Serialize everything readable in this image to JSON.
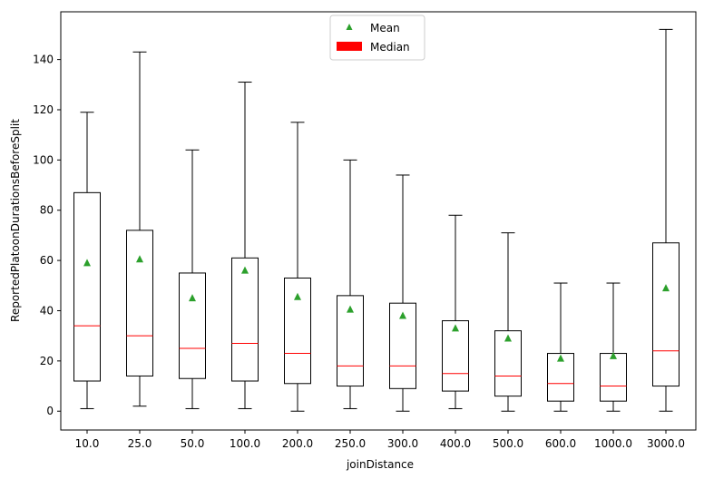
{
  "chart_data": {
    "type": "box",
    "xlabel": "joinDistance",
    "ylabel": "ReportedPlatoonDurationsBeforeSplit",
    "categories": [
      "10.0",
      "25.0",
      "50.0",
      "100.0",
      "200.0",
      "250.0",
      "300.0",
      "400.0",
      "500.0",
      "600.0",
      "1000.0",
      "3000.0"
    ],
    "ylim": [
      -7.5,
      159
    ],
    "yticks": [
      0,
      20,
      40,
      60,
      80,
      100,
      120,
      140
    ],
    "grid": false,
    "legend": {
      "position": "top-center",
      "entries": [
        {
          "label": "Mean",
          "marker": "triangle",
          "color": "#2ca02c"
        },
        {
          "label": "Median",
          "marker": "patch",
          "color": "#ff0000"
        }
      ]
    },
    "series": [
      {
        "category": "10.0",
        "whisker_low": 1,
        "q1": 12,
        "median": 34,
        "q3": 87,
        "whisker_high": 119,
        "mean": 59
      },
      {
        "category": "25.0",
        "whisker_low": 2,
        "q1": 14,
        "median": 30,
        "q3": 72,
        "whisker_high": 143,
        "mean": 60.5
      },
      {
        "category": "50.0",
        "whisker_low": 1,
        "q1": 13,
        "median": 25,
        "q3": 55,
        "whisker_high": 104,
        "mean": 45
      },
      {
        "category": "100.0",
        "whisker_low": 1,
        "q1": 12,
        "median": 27,
        "q3": 61,
        "whisker_high": 131,
        "mean": 56
      },
      {
        "category": "200.0",
        "whisker_low": 0,
        "q1": 11,
        "median": 23,
        "q3": 53,
        "whisker_high": 115,
        "mean": 45.5
      },
      {
        "category": "250.0",
        "whisker_low": 1,
        "q1": 10,
        "median": 18,
        "q3": 46,
        "whisker_high": 100,
        "mean": 40.5
      },
      {
        "category": "300.0",
        "whisker_low": 0,
        "q1": 9,
        "median": 18,
        "q3": 43,
        "whisker_high": 94,
        "mean": 38
      },
      {
        "category": "400.0",
        "whisker_low": 1,
        "q1": 8,
        "median": 15,
        "q3": 36,
        "whisker_high": 78,
        "mean": 33
      },
      {
        "category": "500.0",
        "whisker_low": 0,
        "q1": 6,
        "median": 14,
        "q3": 32,
        "whisker_high": 71,
        "mean": 29
      },
      {
        "category": "600.0",
        "whisker_low": 0,
        "q1": 4,
        "median": 11,
        "q3": 23,
        "whisker_high": 51,
        "mean": 21
      },
      {
        "category": "1000.0",
        "whisker_low": 0,
        "q1": 4,
        "median": 10,
        "q3": 23,
        "whisker_high": 51,
        "mean": 22
      },
      {
        "category": "3000.0",
        "whisker_low": 0,
        "q1": 10,
        "median": 24,
        "q3": 67,
        "whisker_high": 152,
        "mean": 49
      }
    ]
  }
}
